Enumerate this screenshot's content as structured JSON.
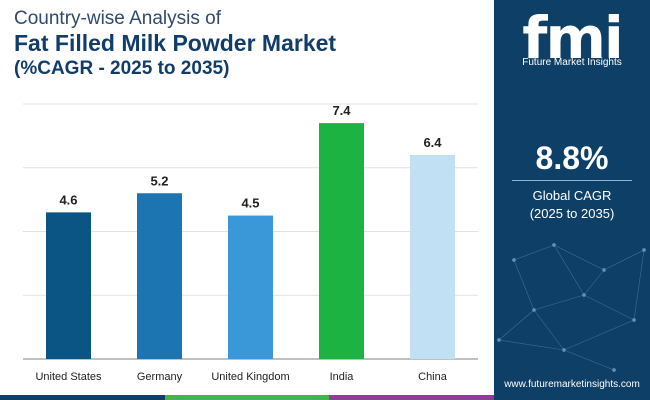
{
  "title": {
    "line1": "Country-wise Analysis of",
    "line2": "Fat Filled Milk Powder Market",
    "line3": "(%CAGR - 2025 to 2035)"
  },
  "chart_data": {
    "type": "bar",
    "categories": [
      "United States",
      "Germany",
      "United Kingdom",
      "India",
      "China"
    ],
    "values": [
      4.6,
      5.2,
      4.5,
      7.4,
      6.4
    ],
    "colors": [
      "#0b5584",
      "#1c74b0",
      "#3a98d8",
      "#1db342",
      "#c2e0f3"
    ],
    "ylim": [
      0,
      8
    ],
    "grid": true,
    "title": "",
    "xlabel": "",
    "ylabel": ""
  },
  "sidebar": {
    "logo": "fmi",
    "brand": "Future Market Insights",
    "cagr_value": "8.8%",
    "cagr_label_1": "Global CAGR",
    "cagr_label_2": "(2025 to 2035)",
    "website": "www.futuremarketinsights.com"
  },
  "bottom_bar_colors": [
    "#0e3f66",
    "#43b649",
    "#8e3e97"
  ]
}
